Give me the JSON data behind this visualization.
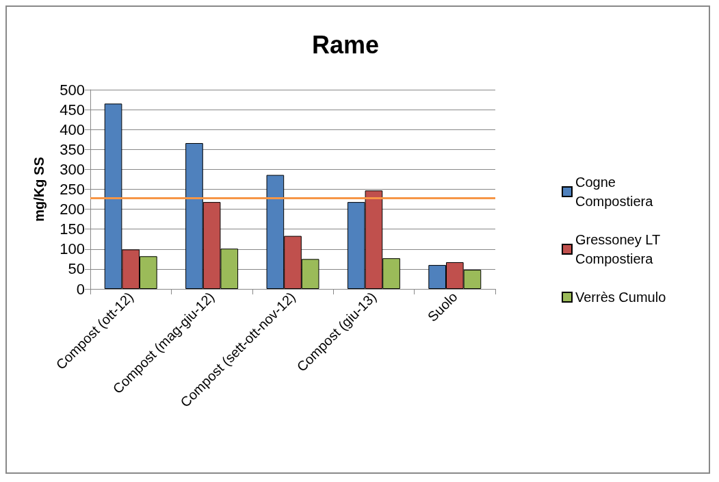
{
  "chart_data": {
    "type": "bar",
    "title": "Rame",
    "ylabel": "mg/Kg SS",
    "categories": [
      "Compost (ott-12)",
      "Compost (mag-giu-12)",
      "Compost (sett-ott-nov-12)",
      "Compost (giu-13)",
      "Suolo"
    ],
    "series": [
      {
        "name": "Cogne Compostiera",
        "color": "#4f81bd",
        "values": [
          465,
          366,
          286,
          218,
          60
        ]
      },
      {
        "name": "Gressoney LT Compostiera",
        "color": "#c0504d",
        "values": [
          99,
          218,
          133,
          247,
          67
        ]
      },
      {
        "name": "Verrès Cumulo",
        "color": "#9bbb59",
        "values": [
          82,
          101,
          75,
          77,
          48
        ]
      }
    ],
    "ylim": [
      0,
      500
    ],
    "yticks": [
      0,
      50,
      100,
      150,
      200,
      250,
      300,
      350,
      400,
      450,
      500
    ],
    "grid": "y",
    "legend": "right",
    "ref_lines": [
      {
        "axis": "y",
        "value": 228,
        "color": "#f79646"
      }
    ]
  }
}
